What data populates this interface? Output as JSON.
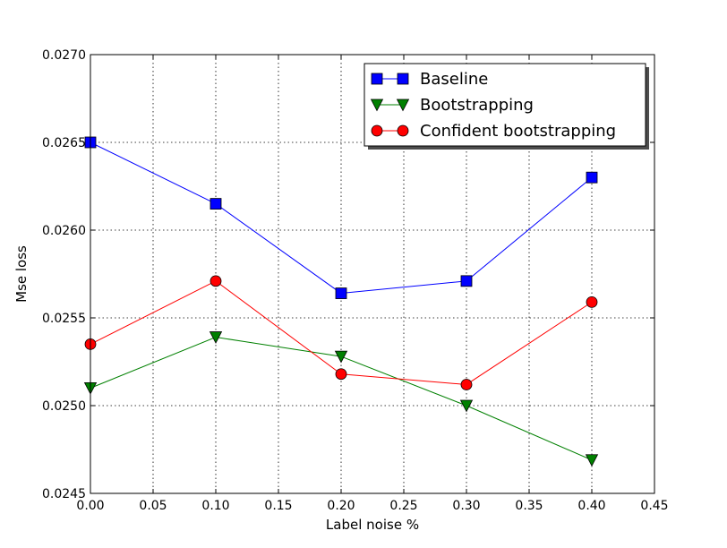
{
  "chart_data": {
    "type": "line",
    "xlabel": "Label noise %",
    "ylabel": "Mse loss",
    "xlim": [
      0.0,
      0.45
    ],
    "ylim": [
      0.0245,
      0.027
    ],
    "x_ticks": [
      "0.00",
      "0.05",
      "0.10",
      "0.15",
      "0.20",
      "0.25",
      "0.30",
      "0.35",
      "0.40",
      "0.45"
    ],
    "y_ticks": [
      "0.0245",
      "0.0250",
      "0.0255",
      "0.0260",
      "0.0265",
      "0.0270"
    ],
    "grid": true,
    "legend_position": "top-right",
    "x": [
      0.0,
      0.1,
      0.2,
      0.3,
      0.4
    ],
    "series": [
      {
        "name": "Baseline",
        "values": [
          0.0265,
          0.02615,
          0.02564,
          0.02571,
          0.0263
        ],
        "color": "#0000ff",
        "marker": "square"
      },
      {
        "name": "Bootstrapping",
        "values": [
          0.0251,
          0.02539,
          0.02528,
          0.025,
          0.02469
        ],
        "color": "#008000",
        "marker": "triangle-down"
      },
      {
        "name": "Confident bootstrapping",
        "values": [
          0.02535,
          0.02571,
          0.02518,
          0.02512,
          0.02559
        ],
        "color": "#ff0000",
        "marker": "circle"
      }
    ]
  }
}
